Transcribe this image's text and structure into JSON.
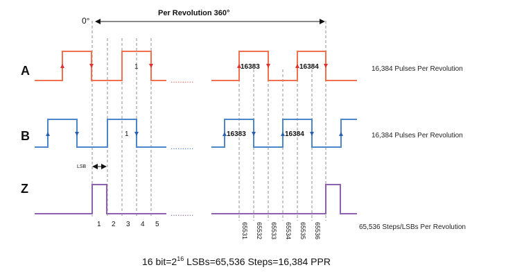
{
  "header": {
    "zero_label": "0°",
    "revolution_label": "Per Revolution 360°"
  },
  "channels": {
    "a": {
      "name": "A",
      "description": "16,384 Pulses Per Revolution",
      "color": "#f07050",
      "arrow_color": "#e03030"
    },
    "b": {
      "name": "B",
      "description": "16,384 Pulses Per Revolution",
      "color": "#4a86c8",
      "arrow_color": "#2a5fb0"
    },
    "z": {
      "name": "Z",
      "description": "65,536 Steps/LSBs Per Revolution",
      "color": "#9060b0"
    }
  },
  "pulse_labels": {
    "a_first": "1",
    "a_mid": "16383",
    "a_last": "16384",
    "b_first": "1",
    "b_mid": "16383",
    "b_last": "16384"
  },
  "lsb_label": "LSB",
  "step_numbers": [
    "1",
    "2",
    "3",
    "4",
    "5"
  ],
  "step_numbers_end": [
    "65531",
    "65532",
    "65533",
    "65534",
    "65535",
    "65536"
  ],
  "dots": "..........",
  "footer_prefix": "16 bit=2",
  "footer_exp": "16",
  "footer_suffix": " LSBs=65,536 Steps=16,384 PPR"
}
